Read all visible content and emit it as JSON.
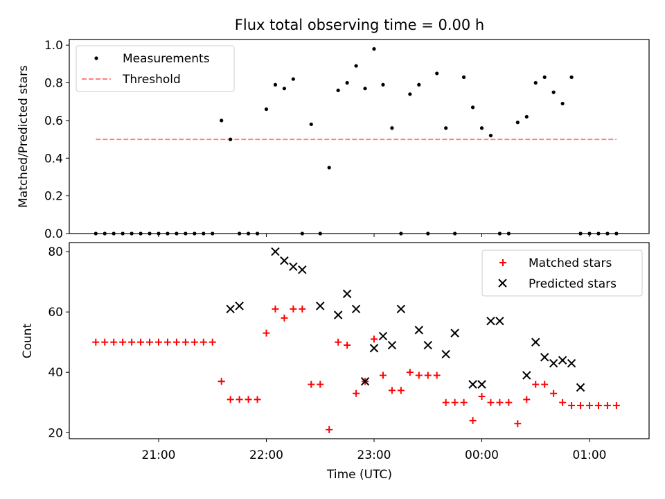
{
  "chart_data": [
    {
      "type": "scatter",
      "title": "Flux total observing time = 0.00 h",
      "ylabel": "Matched/Predicted stars",
      "ylim": [
        0,
        1.03
      ],
      "yticks": [
        "0.0",
        "0.2",
        "0.4",
        "0.6",
        "0.8",
        "1.0"
      ],
      "ytick_values": [
        0,
        0.2,
        0.4,
        0.6,
        0.8,
        1.0
      ],
      "legend_position": "top-left",
      "series": [
        {
          "name": "Measurements",
          "color": "#000000",
          "marker": "dot",
          "x": [
            "20:25",
            "20:30",
            "20:35",
            "20:40",
            "20:45",
            "20:50",
            "20:55",
            "21:00",
            "21:05",
            "21:10",
            "21:15",
            "21:20",
            "21:25",
            "21:30",
            "21:35",
            "21:40",
            "21:45",
            "21:50",
            "21:55",
            "22:00",
            "22:05",
            "22:10",
            "22:15",
            "22:20",
            "22:25",
            "22:30",
            "22:35",
            "22:40",
            "22:45",
            "22:50",
            "22:55",
            "23:00",
            "23:05",
            "23:10",
            "23:15",
            "23:20",
            "23:25",
            "23:30",
            "23:35",
            "23:40",
            "23:45",
            "23:50",
            "23:55",
            "00:00",
            "00:05",
            "00:10",
            "00:15",
            "00:20",
            "00:25",
            "00:30",
            "00:35",
            "00:40",
            "00:45",
            "00:50",
            "00:55",
            "01:00",
            "01:05",
            "01:10",
            "01:15"
          ],
          "values": [
            0,
            0,
            0,
            0,
            0,
            0,
            0,
            0,
            0,
            0,
            0,
            0,
            0,
            0,
            0.6,
            0.5,
            0,
            0,
            0,
            0.66,
            0.79,
            0.77,
            0.82,
            0,
            0.58,
            0,
            0.35,
            0.76,
            0.8,
            0.89,
            0.77,
            0.98,
            0.79,
            0.56,
            0,
            0.74,
            0.79,
            0,
            0.85,
            0.56,
            0,
            0.83,
            0.67,
            0.56,
            0.52,
            0,
            0,
            0.59,
            0.62,
            0.8,
            0.83,
            0.75,
            0.69,
            0.83,
            0,
            0,
            0,
            0,
            0
          ]
        },
        {
          "name": "Threshold",
          "color": "#ff7f7f",
          "style": "dashed",
          "x": [
            "20:25",
            "01:15"
          ],
          "values": [
            0.5,
            0.5
          ]
        }
      ]
    },
    {
      "type": "scatter",
      "ylabel": "Count",
      "xlabel": "Time (UTC)",
      "ylim": [
        18,
        83
      ],
      "yticks": [
        "20",
        "40",
        "60",
        "80"
      ],
      "ytick_values": [
        20,
        40,
        60,
        80
      ],
      "x_ticks": [
        "21:00",
        "22:00",
        "23:00",
        "00:00",
        "01:00"
      ],
      "legend_position": "top-right",
      "series": [
        {
          "name": "Matched stars",
          "color": "#ff0000",
          "marker": "plus",
          "x": [
            "20:25",
            "20:30",
            "20:35",
            "20:40",
            "20:45",
            "20:50",
            "20:55",
            "21:00",
            "21:05",
            "21:10",
            "21:15",
            "21:20",
            "21:25",
            "21:30",
            "21:35",
            "21:40",
            "21:45",
            "21:50",
            "21:55",
            "22:00",
            "22:05",
            "22:10",
            "22:15",
            "22:20",
            "22:25",
            "22:30",
            "22:35",
            "22:40",
            "22:45",
            "22:50",
            "22:55",
            "23:00",
            "23:05",
            "23:10",
            "23:15",
            "23:20",
            "23:25",
            "23:30",
            "23:35",
            "23:40",
            "23:45",
            "23:50",
            "23:55",
            "00:00",
            "00:05",
            "00:10",
            "00:15",
            "00:20",
            "00:25",
            "00:30",
            "00:35",
            "00:40",
            "00:45",
            "00:50",
            "00:55",
            "01:00",
            "01:05",
            "01:10",
            "01:15"
          ],
          "values": [
            50,
            50,
            50,
            50,
            50,
            50,
            50,
            50,
            50,
            50,
            50,
            50,
            50,
            50,
            37,
            31,
            31,
            31,
            31,
            53,
            61,
            58,
            61,
            61,
            36,
            36,
            21,
            50,
            49,
            33,
            37,
            51,
            39,
            34,
            34,
            40,
            39,
            39,
            39,
            30,
            30,
            30,
            24,
            32,
            30,
            30,
            30,
            23,
            31,
            36,
            36,
            33,
            30,
            29,
            29,
            29,
            29,
            29,
            29
          ]
        },
        {
          "name": "Predicted stars",
          "color": "#000000",
          "marker": "x",
          "x": [
            "21:40",
            "21:45",
            "22:05",
            "22:10",
            "22:15",
            "22:20",
            "22:30",
            "22:40",
            "22:45",
            "22:50",
            "22:55",
            "23:00",
            "23:05",
            "23:10",
            "23:15",
            "23:25",
            "23:30",
            "23:40",
            "23:45",
            "23:55",
            "00:00",
            "00:05",
            "00:10",
            "00:25",
            "00:30",
            "00:35",
            "00:40",
            "00:45",
            "00:50",
            "00:55"
          ],
          "values": [
            61,
            62,
            80,
            77,
            75,
            74,
            62,
            59,
            66,
            61,
            37,
            48,
            52,
            49,
            61,
            54,
            49,
            46,
            53,
            36,
            36,
            57,
            57,
            39,
            50,
            45,
            43,
            44,
            43,
            35
          ]
        }
      ]
    }
  ]
}
